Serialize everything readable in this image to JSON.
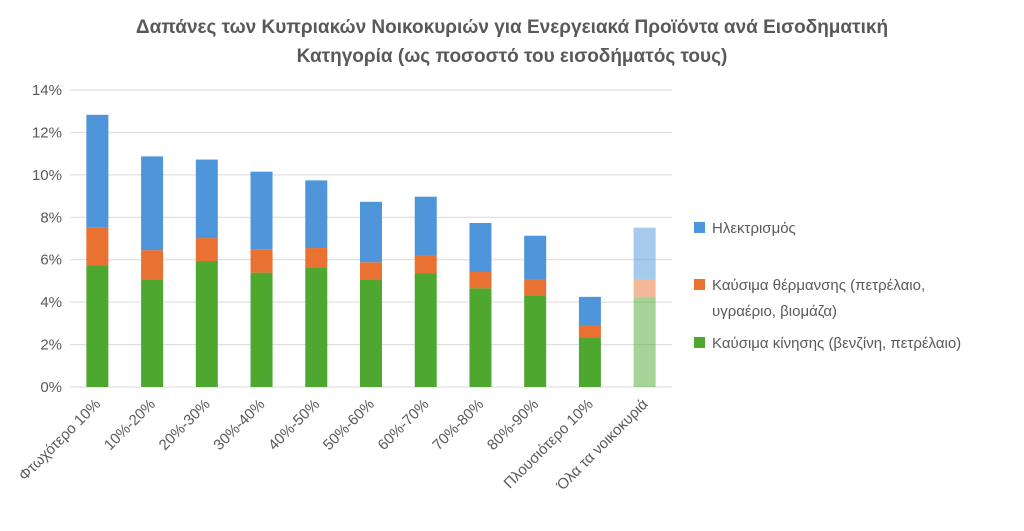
{
  "chart_data": {
    "type": "bar",
    "stacked": true,
    "title_lines": [
      "Δαπάνες των Κυπριακών Νοικοκυριών για Ενεργειακά Προϊόντα ανά Εισοδηματική",
      "Κατηγορία (ως ποσοστό του εισοδήματός τους)"
    ],
    "categories": [
      "Φτωχότερο 10%",
      "10%-20%",
      "20%-30%",
      "30%-40%",
      "40%-50%",
      "50%-60%",
      "60%-70%",
      "70%-80%",
      "80%-90%",
      "Πλουσιότερο 10%",
      "Όλα τα νοικοκυριά"
    ],
    "series": [
      {
        "name": "Καύσιμα κίνησης (βενζίνη, πετρέλαιο)",
        "color": "#4ea72e",
        "values": [
          5.73,
          5.07,
          5.94,
          5.39,
          5.64,
          5.07,
          5.37,
          4.65,
          4.31,
          2.35,
          4.25
        ]
      },
      {
        "name_lines": [
          "Καύσιμα θέρμανσης (πετρέλαιο,",
          "υγραέριο, βιομάζα)"
        ],
        "color": "#e97132",
        "values": [
          1.78,
          1.38,
          1.08,
          1.1,
          0.91,
          0.81,
          0.83,
          0.77,
          0.76,
          0.55,
          0.82
        ]
      },
      {
        "name": "Ηλεκτρισμός",
        "color": "#4e95d9",
        "values": [
          5.32,
          4.42,
          3.7,
          3.66,
          3.19,
          2.85,
          2.77,
          2.31,
          2.06,
          1.35,
          2.44
        ]
      }
    ],
    "highlight_last_category_faded": true,
    "ylim": [
      0,
      14
    ],
    "yticks": [
      0,
      2,
      4,
      6,
      8,
      10,
      12,
      14
    ],
    "ytick_labels": [
      "0%",
      "2%",
      "4%",
      "6%",
      "8%",
      "10%",
      "12%",
      "14%"
    ],
    "grid": true,
    "legend_position": "right",
    "legend_order": [
      2,
      1,
      0
    ]
  }
}
